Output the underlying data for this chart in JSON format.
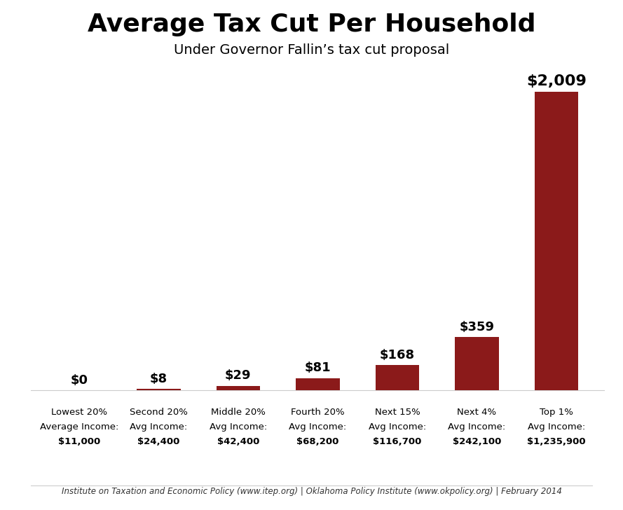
{
  "title": "Average Tax Cut Per Household",
  "subtitle": "Under Governor Fallin’s tax cut proposal",
  "categories": [
    "Lowest 20%",
    "Second 20%",
    "Middle 20%",
    "Fourth 20%",
    "Next 15%",
    "Next 4%",
    "Top 1%"
  ],
  "avg_incomes_line1": [
    "Average Income:",
    "Avg Income:",
    "Avg Income:",
    "Avg Income:",
    "Avg Income:",
    "Avg Income:",
    "Avg Income:"
  ],
  "avg_incomes": [
    "$11,000",
    "$24,400",
    "$42,400",
    "$68,200",
    "$116,700",
    "$242,100",
    "$1,235,900"
  ],
  "values": [
    0,
    8,
    29,
    81,
    168,
    359,
    2009
  ],
  "value_labels": [
    "$0",
    "$8",
    "$29",
    "$81",
    "$168",
    "$359",
    "$2,009"
  ],
  "bar_color": "#8B1A1A",
  "background_color": "#FFFFFF",
  "grid_color": "#CCCCCC",
  "ylim": [
    0,
    2200
  ],
  "footer": "Institute on Taxation and Economic Policy (www.itep.org) | Oklahoma Policy Institute (www.okpolicy.org) | February 2014"
}
